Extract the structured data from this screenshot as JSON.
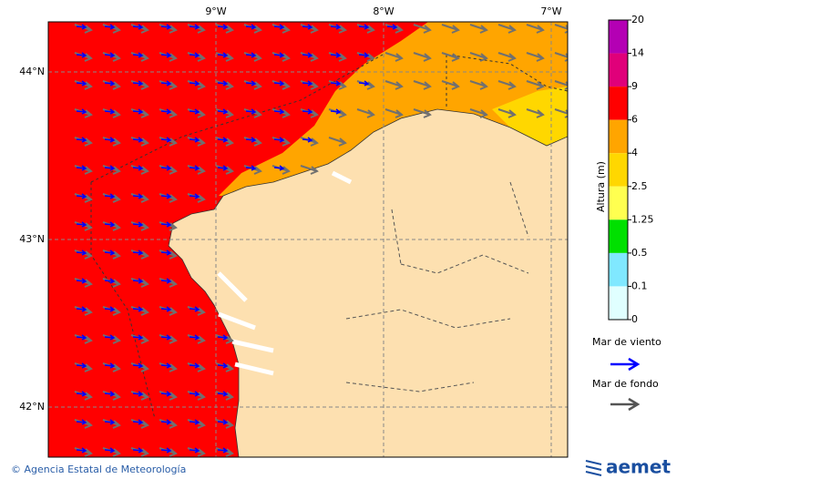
{
  "map": {
    "x_labels": [
      "9°W",
      "8°W",
      "7°W"
    ],
    "y_labels": [
      "44°N",
      "43°N",
      "42°N"
    ]
  },
  "colorbar": {
    "title": "Altura (m)",
    "ticks": [
      20,
      14,
      9,
      6,
      4,
      2.5,
      1.25,
      0.5,
      0.1,
      0
    ]
  },
  "legend": {
    "wind_sea": "Mar de viento",
    "swell": "Mar de fondo"
  },
  "footer": {
    "credit": "© Agencia Estatal de Meteorología",
    "logo": "aemet"
  }
}
